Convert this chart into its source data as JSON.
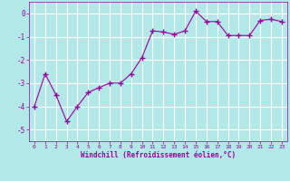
{
  "x": [
    0,
    1,
    2,
    3,
    4,
    5,
    6,
    7,
    8,
    9,
    10,
    11,
    12,
    13,
    14,
    15,
    16,
    17,
    18,
    19,
    20,
    21,
    22,
    23
  ],
  "y": [
    -4.0,
    -2.6,
    -3.5,
    -4.65,
    -4.0,
    -3.4,
    -3.2,
    -3.0,
    -3.0,
    -2.6,
    -1.9,
    -0.75,
    -0.8,
    -0.9,
    -0.75,
    0.1,
    -0.35,
    -0.35,
    -0.95,
    -0.95,
    -0.95,
    -0.3,
    -0.25,
    -0.35
  ],
  "line_color": "#9b009b",
  "marker": "+",
  "marker_size": 4,
  "bg_color": "#b3e8e8",
  "grid_color": "#ffffff",
  "xlabel": "Windchill (Refroidissement éolien,°C)",
  "xlabel_color": "#9b009b",
  "tick_color": "#9b009b",
  "ylim": [
    -5.5,
    0.5
  ],
  "xlim": [
    -0.5,
    23.5
  ],
  "yticks": [
    0,
    -1,
    -2,
    -3,
    -4,
    -5
  ],
  "xticks": [
    0,
    1,
    2,
    3,
    4,
    5,
    6,
    7,
    8,
    9,
    10,
    11,
    12,
    13,
    14,
    15,
    16,
    17,
    18,
    19,
    20,
    21,
    22,
    23
  ]
}
